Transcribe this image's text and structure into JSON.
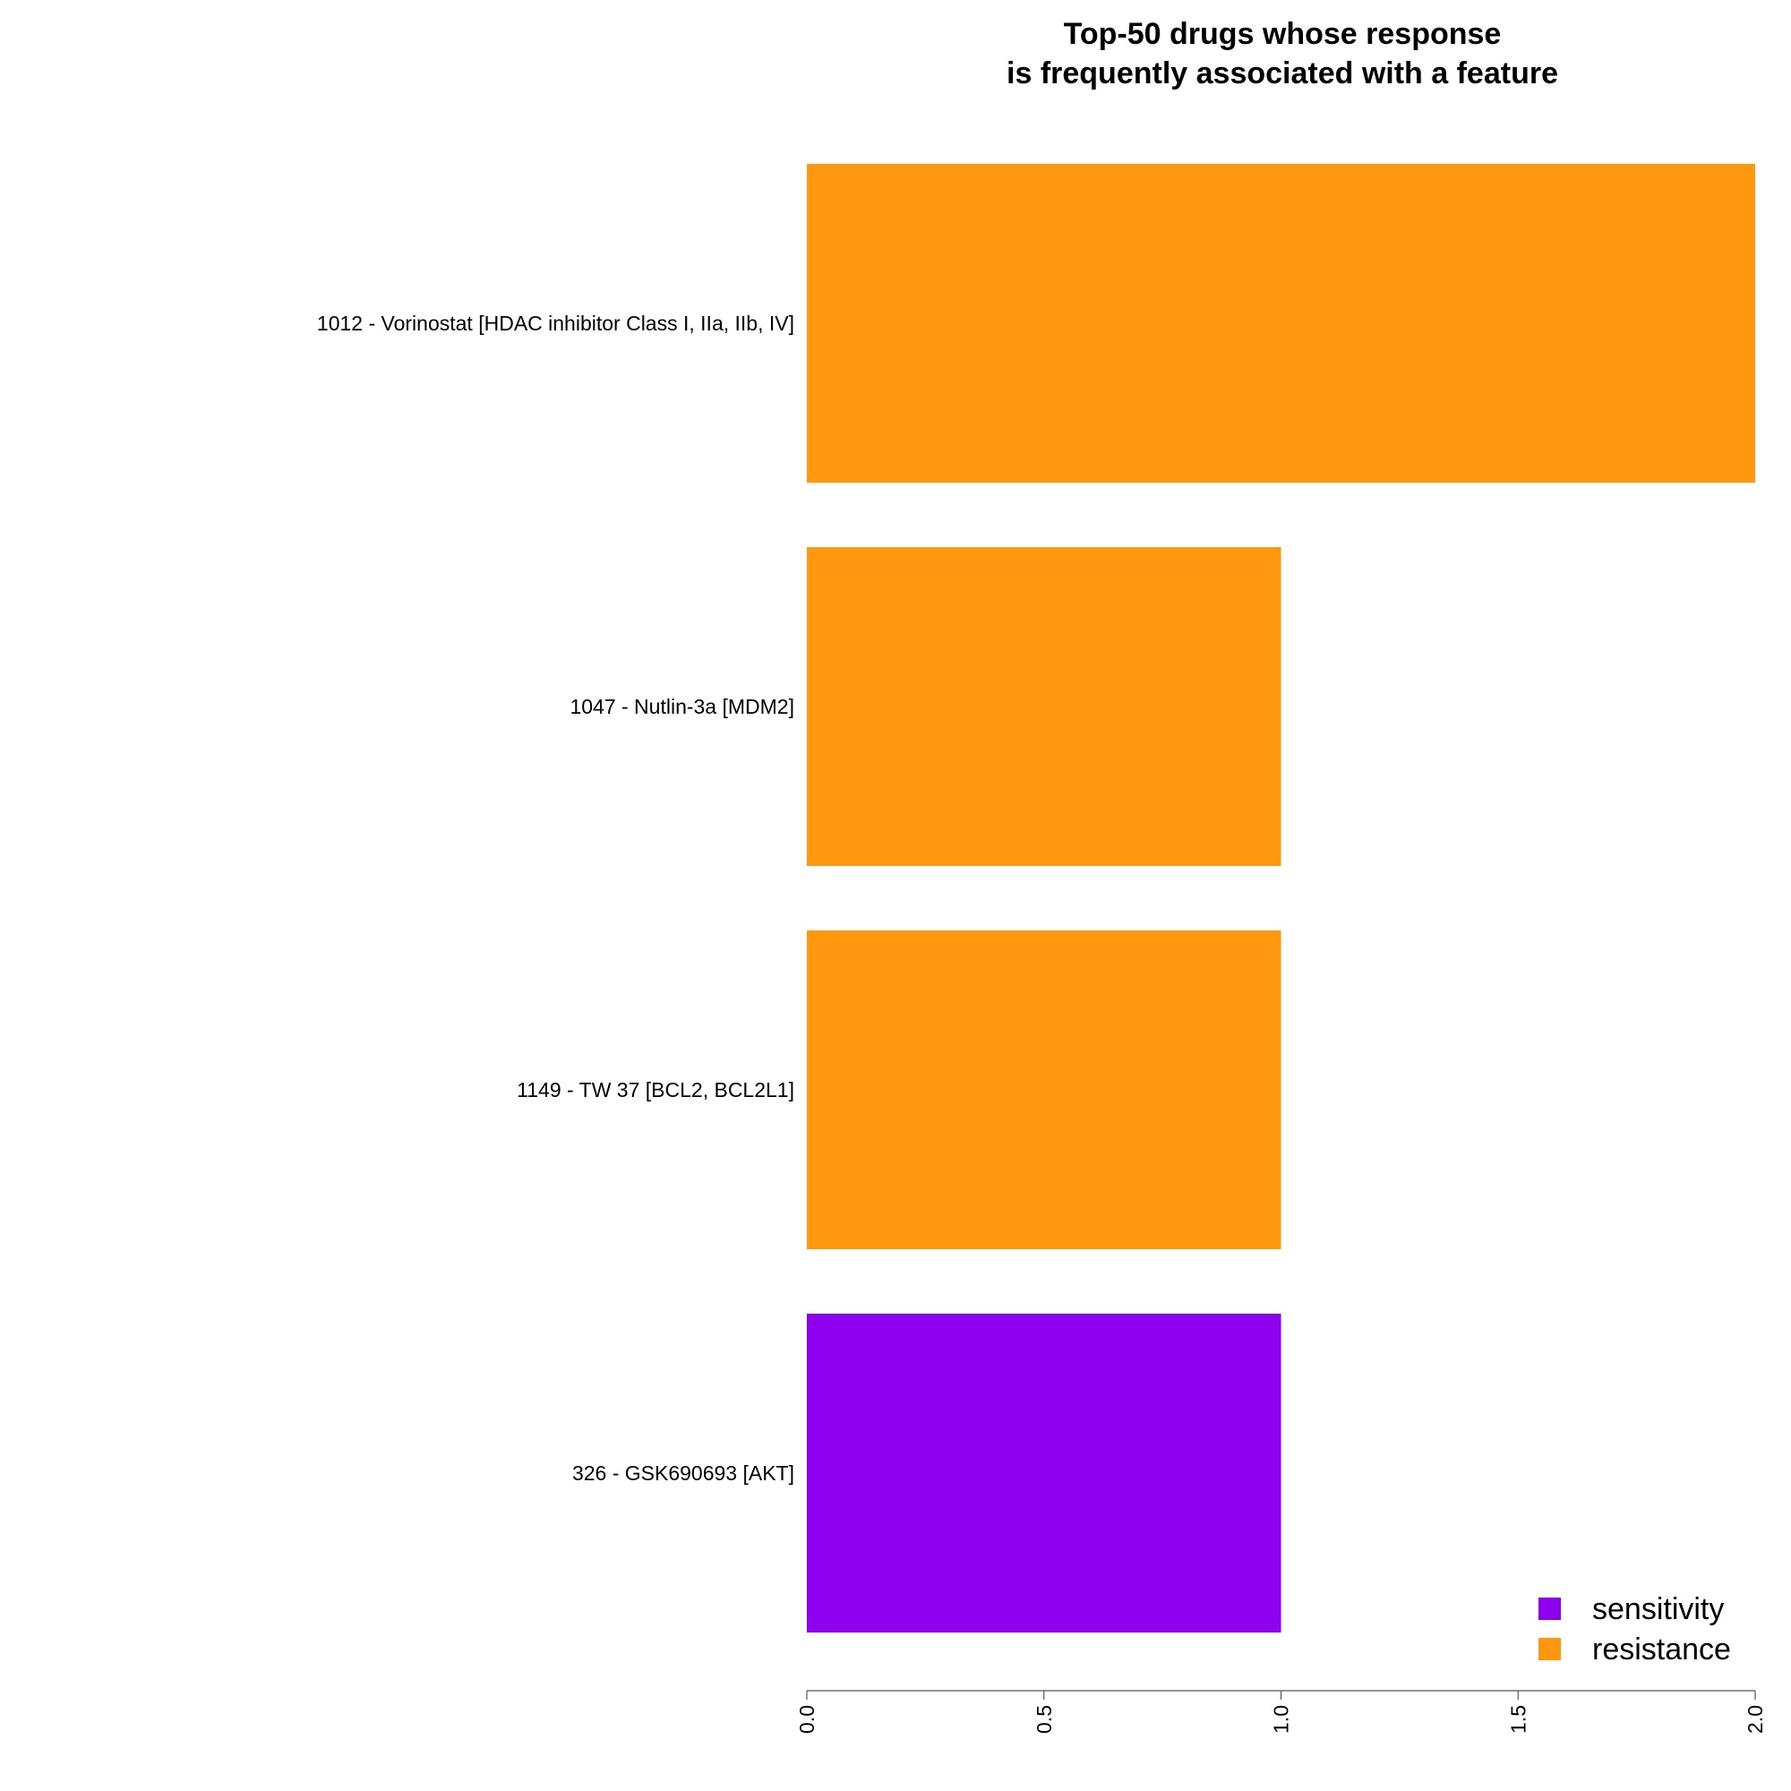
{
  "chart_data": {
    "type": "bar",
    "orientation": "horizontal",
    "title": "Top-50 drugs whose response\nis frequently associated with a feature",
    "categories": [
      "1012 - Vorinostat [HDAC inhibitor Class I, IIa, IIb, IV]",
      "1047 - Nutlin-3a [MDM2]",
      "1149 - TW 37 [BCL2, BCL2L1]",
      "326 - GSK690693 [AKT]"
    ],
    "values": [
      2,
      1,
      1,
      1
    ],
    "bar_groups": [
      "resistance",
      "resistance",
      "resistance",
      "sensitivity"
    ],
    "xlim": [
      0,
      2
    ],
    "ticks": [
      "0.0",
      "0.5",
      "1.0",
      "1.5",
      "2.0"
    ],
    "tick_values": [
      0,
      0.5,
      1,
      1.5,
      2
    ],
    "xlabel": "",
    "ylabel": "",
    "grid": false,
    "legend": {
      "position": "bottom-right",
      "entries": [
        {
          "label": "sensitivity",
          "color": "#8E00EE"
        },
        {
          "label": "resistance",
          "color": "#FF970F"
        }
      ]
    },
    "colors": {
      "sensitivity": "#8E00EE",
      "resistance": "#FF970F"
    }
  }
}
